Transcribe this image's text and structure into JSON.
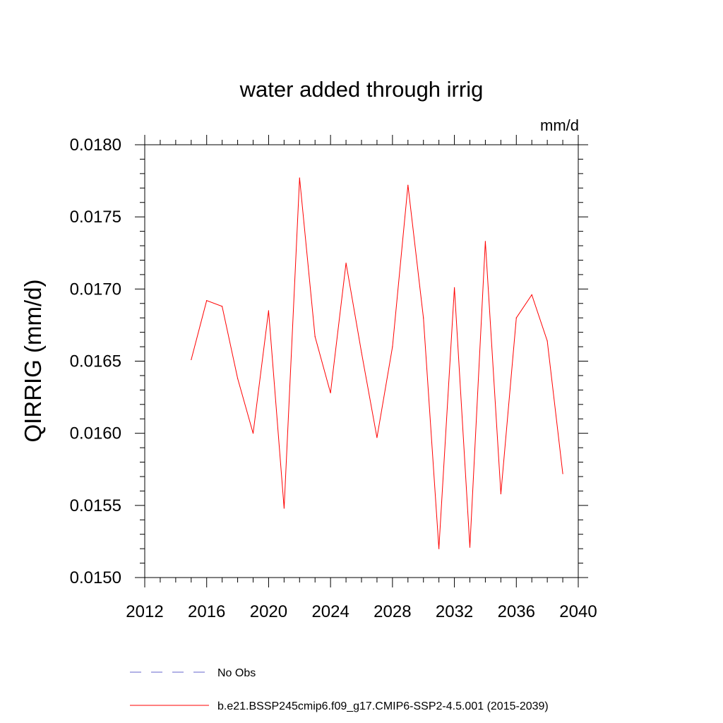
{
  "chart_data": {
    "type": "line",
    "title": "water added through irrig",
    "units_label": "mm/d",
    "xlabel": "",
    "ylabel": "QIRRIG  (mm/d)",
    "xlim": [
      2012,
      2040
    ],
    "ylim": [
      0.015,
      0.018
    ],
    "x_ticks": [
      2012,
      2016,
      2020,
      2024,
      2028,
      2032,
      2036,
      2040
    ],
    "x_tick_labels": [
      "2012",
      "2016",
      "2020",
      "2024",
      "2028",
      "2032",
      "2036",
      "2040"
    ],
    "y_ticks": [
      0.015,
      0.0155,
      0.016,
      0.0165,
      0.017,
      0.0175,
      0.018
    ],
    "y_tick_labels": [
      "0.0150",
      "0.0155",
      "0.0160",
      "0.0165",
      "0.0170",
      "0.0175",
      "0.0180"
    ],
    "grid": false,
    "legend_position": "bottom",
    "series": [
      {
        "name": "b.e21.BSSP245cmip6.f09_g17.CMIP6-SSP2-4.5.001 (2015-2039)",
        "color": "#ff0000",
        "dash": "solid",
        "x": [
          2015,
          2016,
          2017,
          2018,
          2019,
          2020,
          2021,
          2022,
          2023,
          2024,
          2025,
          2026,
          2027,
          2028,
          2029,
          2030,
          2031,
          2032,
          2033,
          2034,
          2035,
          2036,
          2037,
          2038,
          2039
        ],
        "values": [
          0.01651,
          0.01692,
          0.01688,
          0.01638,
          0.016,
          0.01685,
          0.01548,
          0.01777,
          0.01667,
          0.01628,
          0.01718,
          0.01656,
          0.01597,
          0.0166,
          0.01772,
          0.0168,
          0.0152,
          0.01701,
          0.01521,
          0.01733,
          0.01558,
          0.0168,
          0.01696,
          0.01664,
          0.01572
        ]
      }
    ],
    "legend": [
      {
        "label": "No Obs",
        "color": "#6666cc",
        "dash": "dashed"
      },
      {
        "label": "b.e21.BSSP245cmip6.f09_g17.CMIP6-SSP2-4.5.001 (2015-2039)",
        "color": "#ff0000",
        "dash": "solid"
      }
    ]
  }
}
